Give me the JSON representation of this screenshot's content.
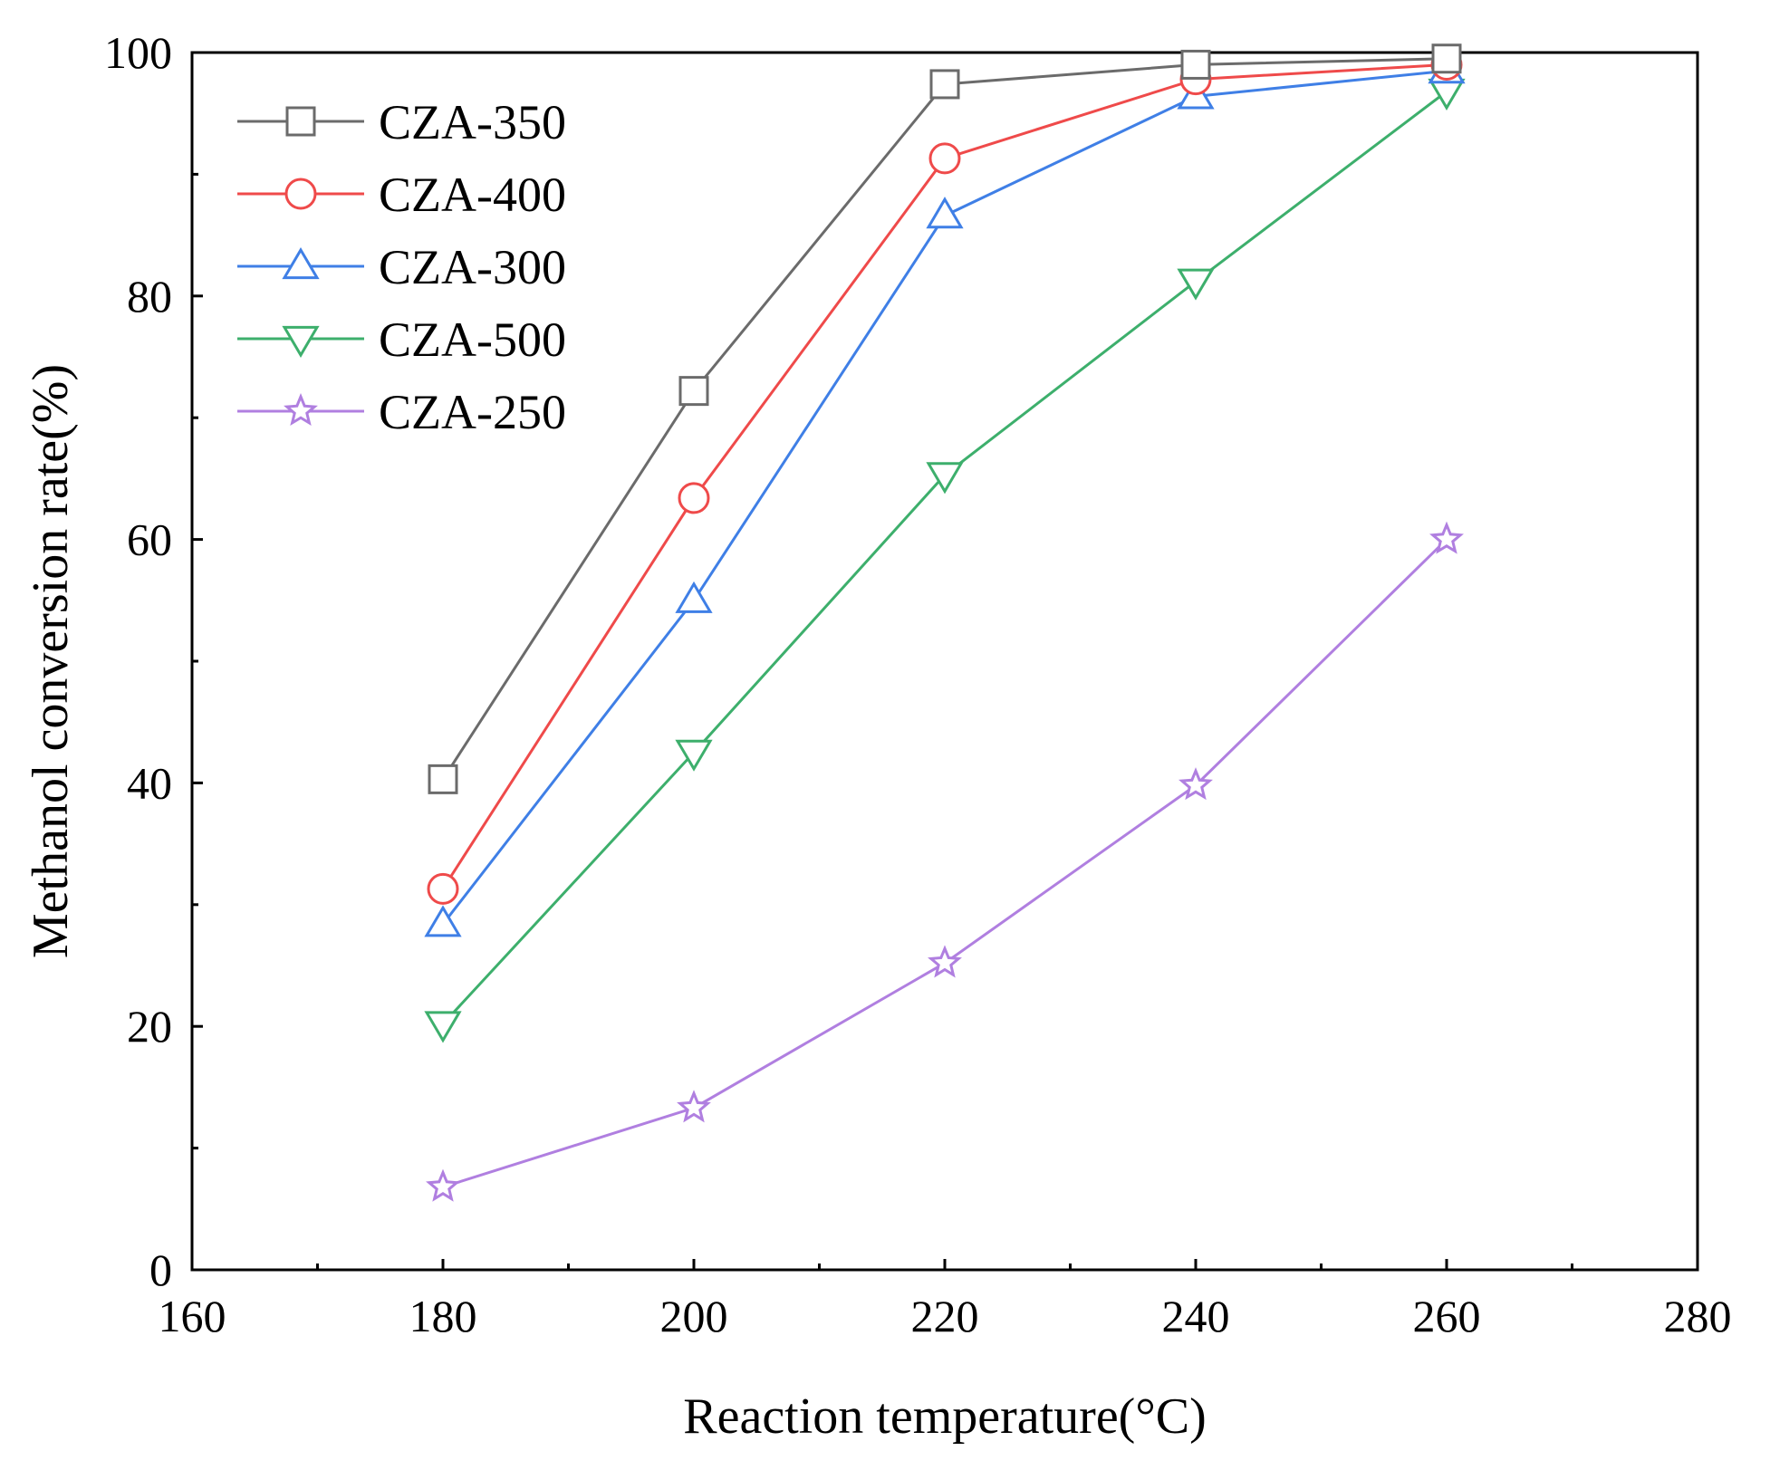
{
  "chart_data": {
    "type": "line",
    "title": "",
    "xlabel": "Reaction temperature(°C)",
    "ylabel": "Methanol conversion rate(%)",
    "xlim": [
      160,
      280
    ],
    "ylim": [
      0,
      100
    ],
    "x_major_ticks": [
      160,
      180,
      200,
      220,
      240,
      260,
      280
    ],
    "x_minor_ticks": [
      170,
      190,
      210,
      230,
      250,
      270
    ],
    "y_major_ticks": [
      0,
      20,
      40,
      60,
      80,
      100
    ],
    "y_minor_ticks": [
      10,
      30,
      50,
      70,
      90
    ],
    "grid": false,
    "legend_position": "top-left",
    "x": [
      180,
      200,
      220,
      240,
      260
    ],
    "series": [
      {
        "name": "CZA-350",
        "color": "#6b6b6b",
        "marker": "square",
        "values": [
          40.3,
          72.2,
          97.4,
          99.0,
          99.5
        ]
      },
      {
        "name": "CZA-400",
        "color": "#ef4a4a",
        "marker": "circle",
        "values": [
          31.3,
          63.4,
          91.3,
          97.8,
          99.0
        ]
      },
      {
        "name": "CZA-300",
        "color": "#3f7fe6",
        "marker": "triangle-up",
        "values": [
          28.4,
          55.0,
          86.6,
          96.4,
          98.5
        ]
      },
      {
        "name": "CZA-500",
        "color": "#3daf6c",
        "marker": "triangle-down",
        "values": [
          20.2,
          42.5,
          65.3,
          81.2,
          96.8
        ]
      },
      {
        "name": "CZA-250",
        "color": "#b07fe0",
        "marker": "star",
        "values": [
          6.8,
          13.3,
          25.2,
          39.8,
          60.0
        ]
      }
    ]
  }
}
